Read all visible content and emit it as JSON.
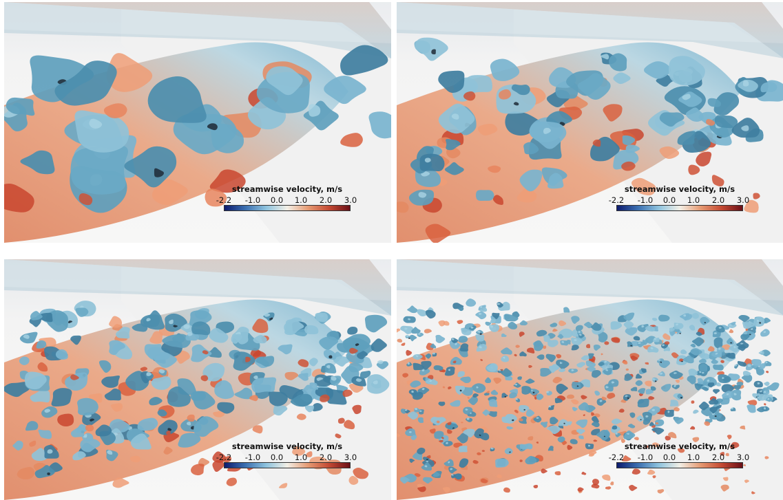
{
  "colorbar": {
    "title": "streamwise velocity, m/s",
    "ticks": [
      "-2.2",
      "-1.0",
      "0.0",
      "1.0",
      "2.0",
      "3.0"
    ],
    "range": [
      -2.2,
      3.0
    ],
    "colors": [
      "#0d1b6e",
      "#3b6fb0",
      "#8ec3de",
      "#f2efe6",
      "#e59a73",
      "#c44a33",
      "#6b0f17"
    ]
  },
  "panels": [
    {
      "id": "p1",
      "density": 1
    },
    {
      "id": "p2",
      "density": 2
    },
    {
      "id": "p3",
      "density": 3
    },
    {
      "id": "p4",
      "density": 4
    }
  ]
}
